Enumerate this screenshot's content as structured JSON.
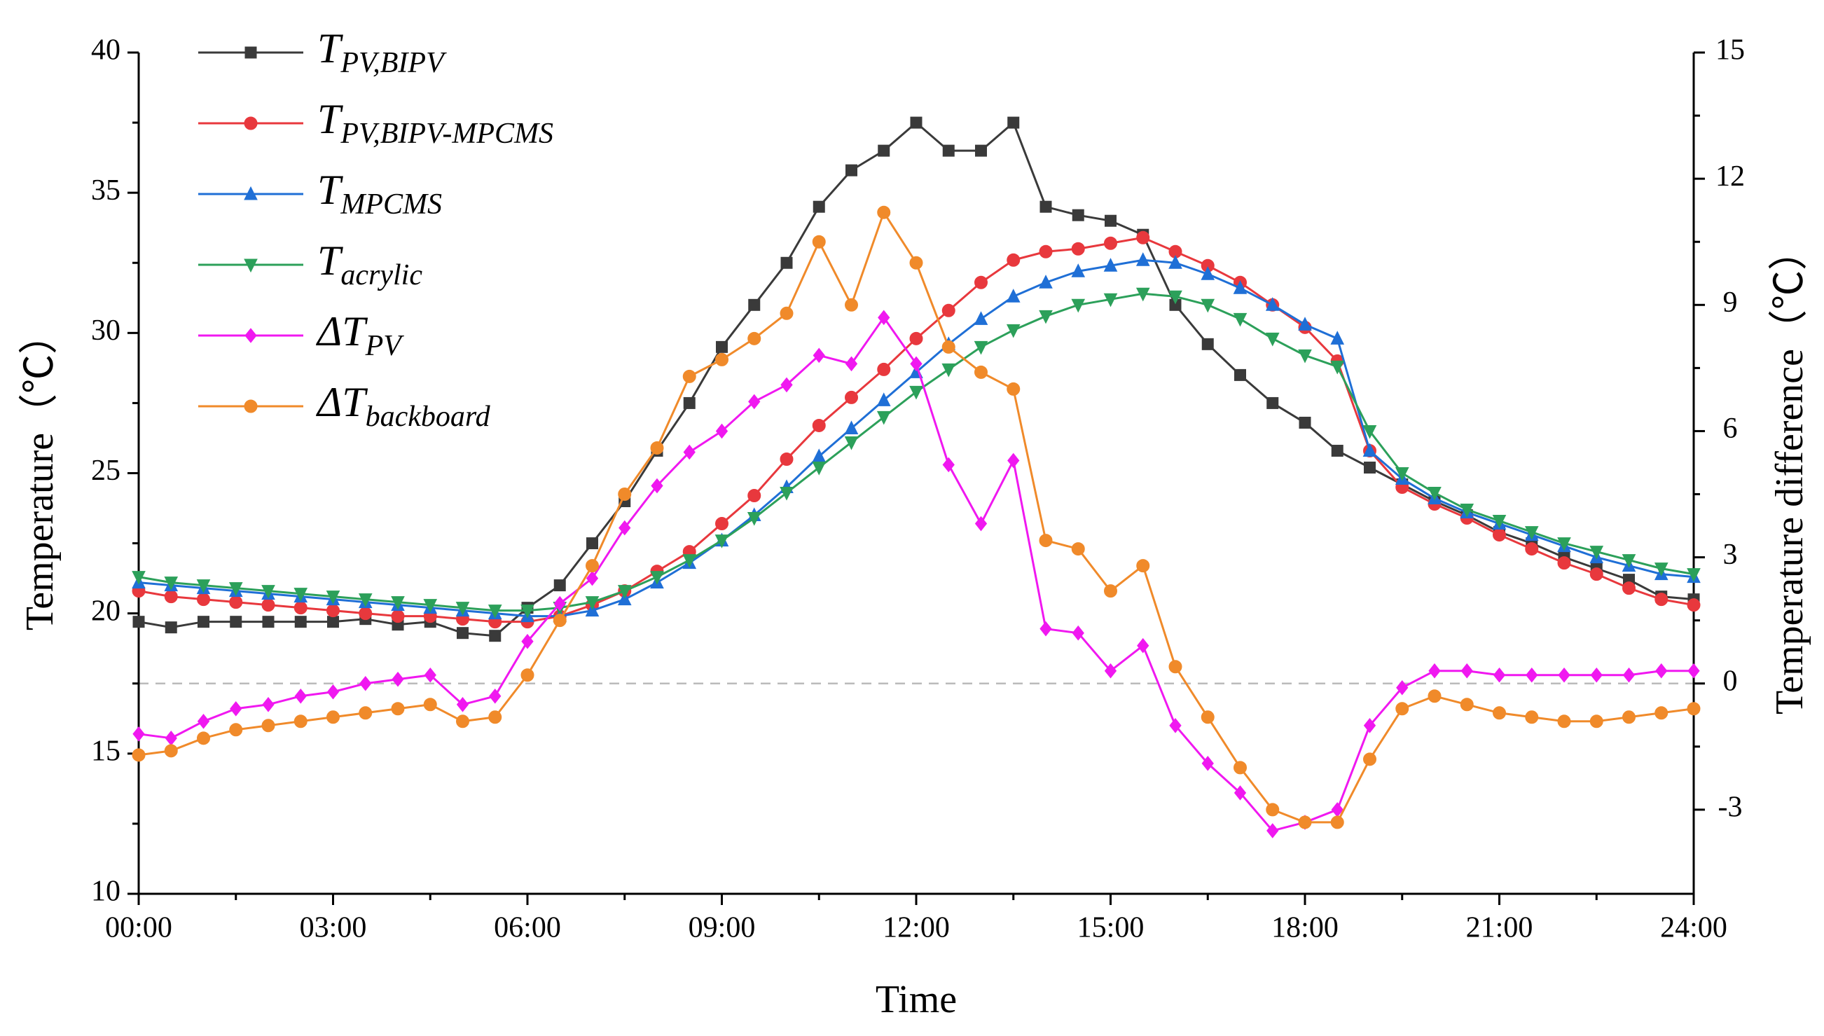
{
  "chart_data": {
    "type": "line",
    "xlabel": "Time",
    "ylabel": "Temperature（℃）",
    "y2label": "Temperature difference（℃）",
    "x": [
      0,
      0.5,
      1,
      1.5,
      2,
      2.5,
      3,
      3.5,
      4,
      4.5,
      5,
      5.5,
      6,
      6.5,
      7,
      7.5,
      8,
      8.5,
      9,
      9.5,
      10,
      10.5,
      11,
      11.5,
      12,
      12.5,
      13,
      13.5,
      14,
      14.5,
      15,
      15.5,
      16,
      16.5,
      17,
      17.5,
      18,
      18.5,
      19,
      19.5,
      20,
      20.5,
      21,
      21.5,
      22,
      22.5,
      23,
      23.5,
      24
    ],
    "xlim": [
      0,
      24
    ],
    "xticks": [
      {
        "value": 0,
        "label": "00:00"
      },
      {
        "value": 3,
        "label": "03:00"
      },
      {
        "value": 6,
        "label": "06:00"
      },
      {
        "value": 9,
        "label": "09:00"
      },
      {
        "value": 12,
        "label": "12:00"
      },
      {
        "value": 15,
        "label": "15:00"
      },
      {
        "value": 18,
        "label": "18:00"
      },
      {
        "value": 21,
        "label": "21:00"
      },
      {
        "value": 24,
        "label": "24:00"
      }
    ],
    "ylim": [
      10,
      40
    ],
    "yticks": [
      10,
      15,
      20,
      25,
      30,
      35,
      40
    ],
    "y2lim": [
      -5,
      15
    ],
    "y2ticks": [
      -3,
      0,
      3,
      6,
      9,
      12,
      15
    ],
    "y2_reference": 0,
    "legend": "upper-left",
    "series": [
      {
        "name": "TPV,BIPV",
        "color": "#3a3a3a",
        "marker": "square",
        "values": [
          19.7,
          19.5,
          19.7,
          19.7,
          19.7,
          19.7,
          19.7,
          19.8,
          19.6,
          19.7,
          19.3,
          19.2,
          20.2,
          21,
          22.5,
          24,
          25.8,
          27.5,
          29.5,
          31,
          32.5,
          34.5,
          35.8,
          36.5,
          37.5,
          36.5,
          36.5,
          37.5,
          34.5,
          34.2,
          34,
          33.5,
          31,
          29.6,
          28.5,
          27.5,
          26.8,
          25.8,
          25.2,
          24.6,
          24,
          23.5,
          22.9,
          22.5,
          22,
          21.6,
          21.2,
          20.6,
          20.5
        ]
      },
      {
        "name": "TPV,BIPV-MPCMS",
        "color": "#e8383d",
        "marker": "circle",
        "values": [
          20.8,
          20.6,
          20.5,
          20.4,
          20.3,
          20.2,
          20.1,
          20,
          19.9,
          19.9,
          19.8,
          19.7,
          19.7,
          19.9,
          20.3,
          20.8,
          21.5,
          22.2,
          23.2,
          24.2,
          25.5,
          26.7,
          27.7,
          28.7,
          29.8,
          30.8,
          31.8,
          32.6,
          32.9,
          33,
          33.2,
          33.4,
          32.9,
          32.4,
          31.8,
          31,
          30.2,
          29,
          25.8,
          24.5,
          23.9,
          23.4,
          22.8,
          22.3,
          21.8,
          21.4,
          20.9,
          20.5,
          20.3
        ]
      },
      {
        "name": "TMPCMS",
        "color": "#1f6fd6",
        "marker": "triangle-up",
        "values": [
          21.1,
          21,
          20.9,
          20.8,
          20.7,
          20.6,
          20.5,
          20.4,
          20.3,
          20.2,
          20.1,
          20,
          19.9,
          19.9,
          20.1,
          20.5,
          21.1,
          21.8,
          22.6,
          23.5,
          24.5,
          25.6,
          26.6,
          27.6,
          28.6,
          29.6,
          30.5,
          31.3,
          31.8,
          32.2,
          32.4,
          32.6,
          32.5,
          32.1,
          31.6,
          31,
          30.3,
          29.8,
          25.8,
          24.8,
          24.1,
          23.6,
          23.2,
          22.8,
          22.4,
          22,
          21.7,
          21.4,
          21.3
        ]
      },
      {
        "name": "Tacrylic",
        "color": "#2ca05a",
        "marker": "triangle-down",
        "values": [
          21.3,
          21.1,
          21,
          20.9,
          20.8,
          20.7,
          20.6,
          20.5,
          20.4,
          20.3,
          20.2,
          20.1,
          20.1,
          20.2,
          20.4,
          20.8,
          21.3,
          21.9,
          22.6,
          23.4,
          24.3,
          25.2,
          26.1,
          27,
          27.9,
          28.7,
          29.5,
          30.1,
          30.6,
          31,
          31.2,
          31.4,
          31.3,
          31,
          30.5,
          29.8,
          29.2,
          28.8,
          26.5,
          25,
          24.3,
          23.7,
          23.3,
          22.9,
          22.5,
          22.2,
          21.9,
          21.6,
          21.4
        ]
      },
      {
        "name": "ΔTPV",
        "color": "#f018f0",
        "marker": "diamond",
        "axis": "y2",
        "values": [
          -1.2,
          -1.3,
          -0.9,
          -0.6,
          -0.5,
          -0.3,
          -0.2,
          0,
          0.1,
          0.2,
          -0.5,
          -0.3,
          1.0,
          1.9,
          2.5,
          3.7,
          4.7,
          5.5,
          6.0,
          6.7,
          7.1,
          7.8,
          7.6,
          8.7,
          7.6,
          5.2,
          3.8,
          5.3,
          1.3,
          1.2,
          0.3,
          0.9,
          -1.0,
          -1.9,
          -2.6,
          -3.5,
          -3.3,
          -3.0,
          -1.0,
          -0.1,
          0.3,
          0.3,
          0.2,
          0.2,
          0.2,
          0.2,
          0.2,
          0.3,
          0.3
        ]
      },
      {
        "name": "ΔTbackboard",
        "color": "#f08a2a",
        "marker": "circle",
        "axis": "y2",
        "values": [
          -1.7,
          -1.6,
          -1.3,
          -1.1,
          -1.0,
          -0.9,
          -0.8,
          -0.7,
          -0.6,
          -0.5,
          -0.9,
          -0.8,
          0.2,
          1.5,
          2.8,
          4.5,
          5.6,
          7.3,
          7.7,
          8.2,
          8.8,
          10.5,
          9.0,
          11.2,
          10.0,
          8.0,
          7.4,
          7.0,
          3.4,
          3.2,
          2.2,
          2.8,
          0.4,
          -0.8,
          -2.0,
          -3.0,
          -3.3,
          -3.3,
          -1.8,
          -0.6,
          -0.3,
          -0.5,
          -0.7,
          -0.8,
          -0.9,
          -0.9,
          -0.8,
          -0.7,
          -0.6
        ]
      }
    ]
  }
}
